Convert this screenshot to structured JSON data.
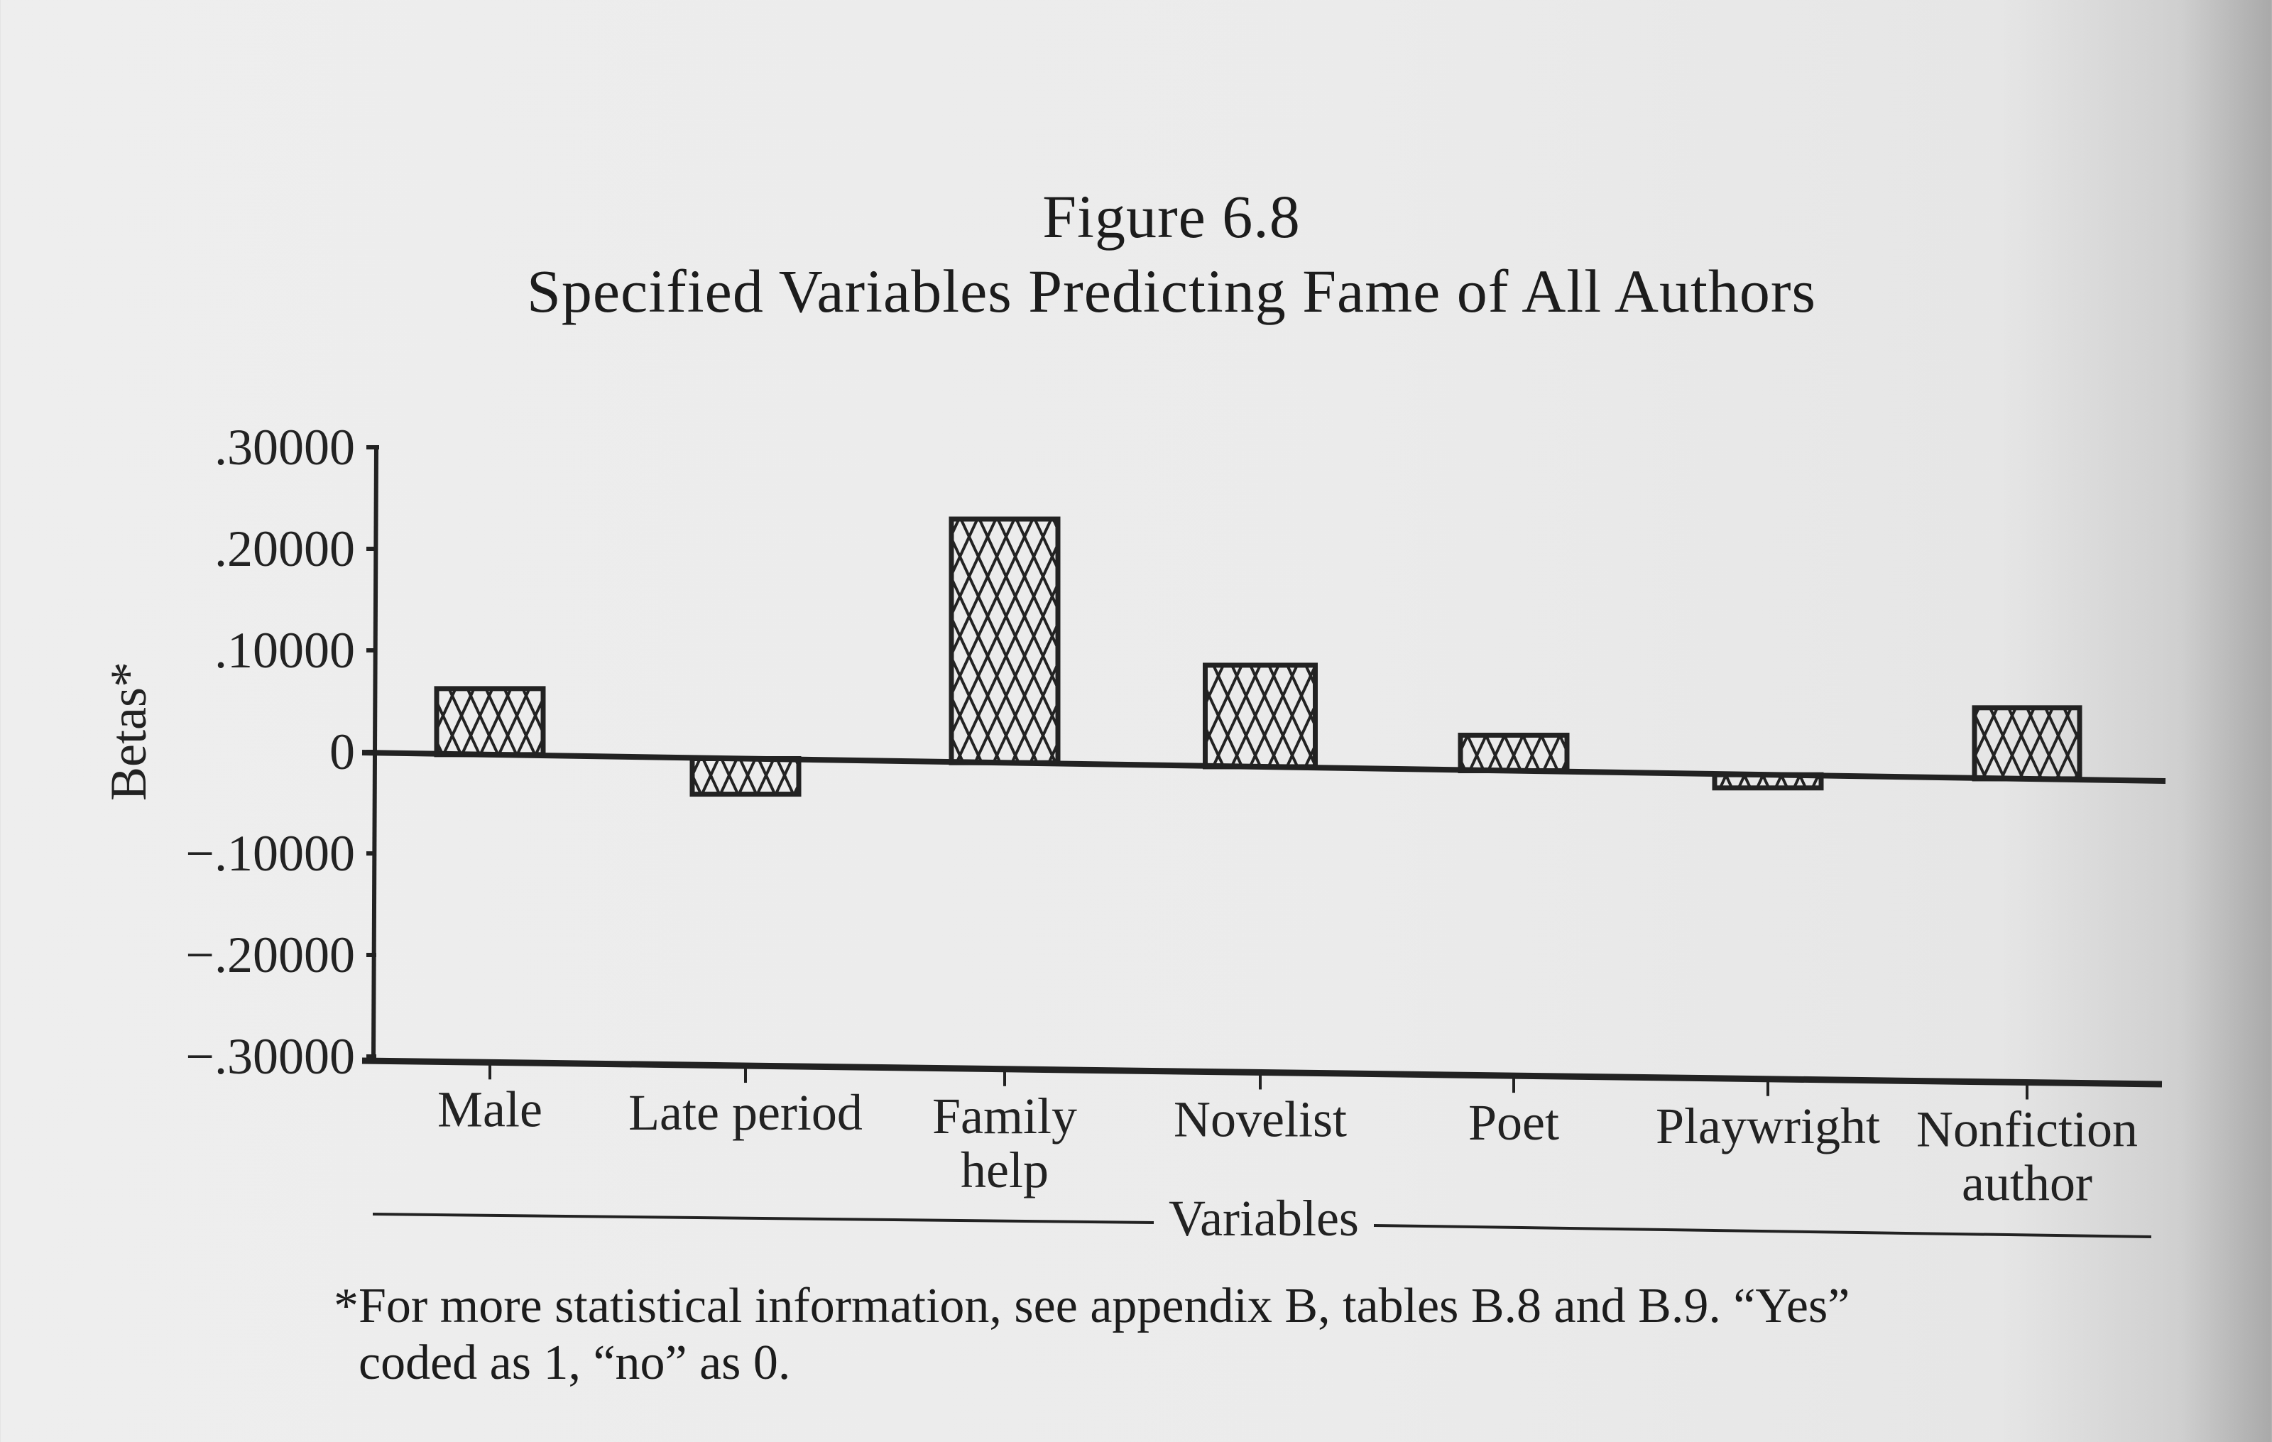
{
  "figure": {
    "number": "Figure 6.8",
    "title": "Specified Variables Predicting Fame of All Authors"
  },
  "axes": {
    "y_label": "Betas*",
    "x_label": "Variables",
    "y_ticks": [
      ".30000",
      ".20000",
      ".10000",
      "0",
      "-.10000",
      "-.20000",
      "-.30000"
    ]
  },
  "categories": [
    {
      "label_lines": [
        "Male"
      ]
    },
    {
      "label_lines": [
        "Late period"
      ]
    },
    {
      "label_lines": [
        "Family",
        "help"
      ]
    },
    {
      "label_lines": [
        "Novelist"
      ]
    },
    {
      "label_lines": [
        "Poet"
      ]
    },
    {
      "label_lines": [
        "Playwright"
      ]
    },
    {
      "label_lines": [
        "Nonfiction",
        "author"
      ]
    }
  ],
  "footnote": {
    "line1": "*For more statistical information, see appendix B, tables B.8 and B.9. “Yes”",
    "line2": "coded as 1, “no” as 0."
  },
  "colors": {
    "ink": "#222222",
    "paper": "#ececec"
  },
  "chart_data": {
    "type": "bar",
    "title": "Figure 6.8 Specified Variables Predicting Fame of All Authors",
    "xlabel": "Variables",
    "ylabel": "Betas*",
    "categories": [
      "Male",
      "Late period",
      "Family help",
      "Novelist",
      "Poet",
      "Playwright",
      "Nonfiction author"
    ],
    "values": [
      0.065,
      -0.035,
      0.24,
      0.1,
      0.035,
      -0.013,
      0.07
    ],
    "ylim": [
      -0.3,
      0.3
    ],
    "yticks": [
      0.3,
      0.2,
      0.1,
      0,
      -0.1,
      -0.2,
      -0.3
    ],
    "ytick_labels": [
      ".30000",
      ".20000",
      ".10000",
      "0",
      "-.10000",
      "-.20000",
      "-.30000"
    ],
    "grid": false,
    "legend": null,
    "fill_pattern": "crosshatch",
    "footnote": "*For more statistical information, see appendix B, tables B.8 and B.9. “Yes” coded as 1, “no” as 0."
  }
}
